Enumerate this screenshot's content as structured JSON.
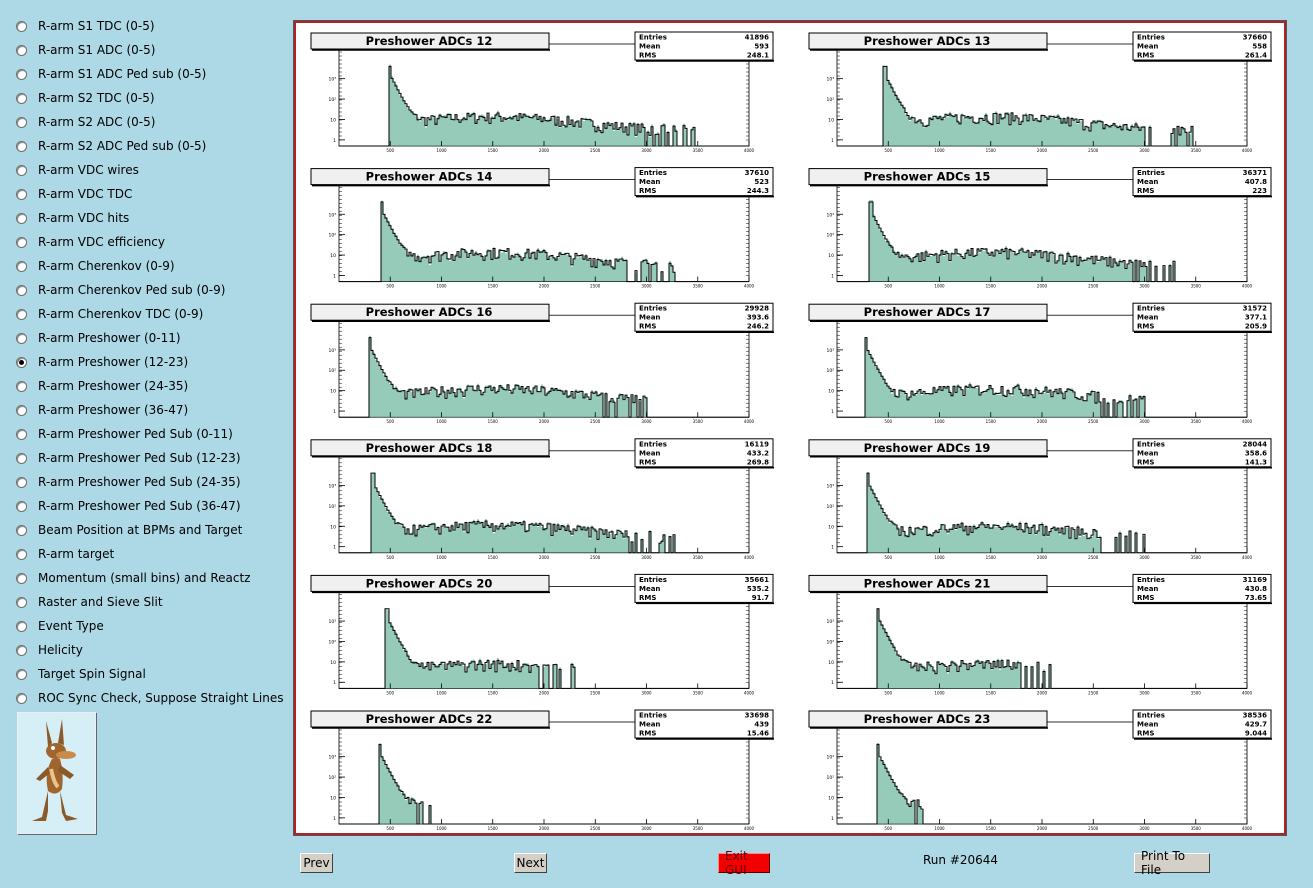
{
  "sidebar": {
    "items": [
      {
        "label": "R-arm S1 TDC (0-5)",
        "checked": false
      },
      {
        "label": "R-arm S1 ADC (0-5)",
        "checked": false
      },
      {
        "label": "R-arm S1 ADC Ped sub (0-5)",
        "checked": false
      },
      {
        "label": "R-arm S2 TDC (0-5)",
        "checked": false
      },
      {
        "label": "R-arm S2 ADC (0-5)",
        "checked": false
      },
      {
        "label": "R-arm S2 ADC Ped sub (0-5)",
        "checked": false
      },
      {
        "label": "R-arm VDC wires",
        "checked": false
      },
      {
        "label": "R-arm VDC TDC",
        "checked": false
      },
      {
        "label": "R-arm VDC hits",
        "checked": false
      },
      {
        "label": "R-arm VDC efficiency",
        "checked": false
      },
      {
        "label": "R-arm Cherenkov (0-9)",
        "checked": false
      },
      {
        "label": "R-arm Cherenkov Ped sub (0-9)",
        "checked": false
      },
      {
        "label": "R-arm Cherenkov TDC (0-9)",
        "checked": false
      },
      {
        "label": "R-arm Preshower (0-11)",
        "checked": false
      },
      {
        "label": "R-arm Preshower (12-23)",
        "checked": true
      },
      {
        "label": "R-arm Preshower (24-35)",
        "checked": false
      },
      {
        "label": "R-arm Preshower (36-47)",
        "checked": false
      },
      {
        "label": "R-arm Preshower Ped Sub (0-11)",
        "checked": false
      },
      {
        "label": "R-arm Preshower Ped Sub (12-23)",
        "checked": false
      },
      {
        "label": "R-arm Preshower Ped Sub (24-35)",
        "checked": false
      },
      {
        "label": "R-arm Preshower Ped Sub (36-47)",
        "checked": false
      },
      {
        "label": "Beam Position at BPMs and Target",
        "checked": false
      },
      {
        "label": "R-arm target",
        "checked": false
      },
      {
        "label": "Momentum (small bins) and Reactz",
        "checked": false
      },
      {
        "label": "Raster and Sieve Slit",
        "checked": false
      },
      {
        "label": "Event Type",
        "checked": false
      },
      {
        "label": "Helicity",
        "checked": false
      },
      {
        "label": "Target Spin Signal",
        "checked": false
      },
      {
        "label": "ROC Sync Check, Suppose Straight Lines",
        "checked": false
      }
    ]
  },
  "logo": {
    "icon": "coyote-mascot-icon"
  },
  "footer": {
    "prev_label": "Prev",
    "next_label": "Next",
    "exit_label": "Exit GUI",
    "run_label": "Run #20644",
    "print_label": "Print To File"
  },
  "colors": {
    "background": "#add8e6",
    "frame": "#b22222",
    "fill": "#3f9f7f",
    "exit": "#f20000"
  },
  "chart_data": {
    "type": "bar",
    "stat_labels": [
      "Entries",
      "Mean",
      "RMS"
    ],
    "x_ticks": [
      "500",
      "1000",
      "1500",
      "2000",
      "2500",
      "3000",
      "3500",
      "4000"
    ],
    "y_ticks": [
      "1",
      "10",
      "10²",
      "10³"
    ],
    "xlim": [
      0,
      4000
    ],
    "log_y": true,
    "histograms": [
      {
        "title": "Preshower ADCs 12",
        "entries": "41896",
        "mean": "593",
        "rms": "248.1",
        "peak": 500,
        "tail_end": 3500,
        "tail_level": 0.45
      },
      {
        "title": "Preshower ADCs 13",
        "entries": "37660",
        "mean": "558",
        "rms": "261.4",
        "peak": 470,
        "tail_end": 3500,
        "tail_level": 0.45
      },
      {
        "title": "Preshower ADCs 14",
        "entries": "37610",
        "mean": "523",
        "rms": "244.3",
        "peak": 420,
        "tail_end": 3300,
        "tail_level": 0.45
      },
      {
        "title": "Preshower ADCs 15",
        "entries": "36371",
        "mean": "407.8",
        "rms": "223",
        "peak": 330,
        "tail_end": 3300,
        "tail_level": 0.45
      },
      {
        "title": "Preshower ADCs 16",
        "entries": "29928",
        "mean": "393.6",
        "rms": "246.2",
        "peak": 300,
        "tail_end": 3000,
        "tail_level": 0.4
      },
      {
        "title": "Preshower ADCs 17",
        "entries": "31572",
        "mean": "377.1",
        "rms": "205.9",
        "peak": 280,
        "tail_end": 3000,
        "tail_level": 0.4
      },
      {
        "title": "Preshower ADCs 18",
        "entries": "16119",
        "mean": "433.2",
        "rms": "269.8",
        "peak": 330,
        "tail_end": 3300,
        "tail_level": 0.35
      },
      {
        "title": "Preshower ADCs 19",
        "entries": "28044",
        "mean": "358.6",
        "rms": "141.3",
        "peak": 300,
        "tail_end": 3000,
        "tail_level": 0.28
      },
      {
        "title": "Preshower ADCs 20",
        "entries": "35661",
        "mean": "535.2",
        "rms": "91.7",
        "peak": 470,
        "tail_end": 2300,
        "tail_level": 0.2
      },
      {
        "title": "Preshower ADCs 21",
        "entries": "31169",
        "mean": "430.8",
        "rms": "73.65",
        "peak": 400,
        "tail_end": 2100,
        "tail_level": 0.2
      },
      {
        "title": "Preshower ADCs 22",
        "entries": "33698",
        "mean": "439",
        "rms": "15.46",
        "peak": 400,
        "tail_end": 900,
        "tail_level": 0.15
      },
      {
        "title": "Preshower ADCs 23",
        "entries": "38536",
        "mean": "429.7",
        "rms": "9.044",
        "peak": 400,
        "tail_end": 900,
        "tail_level": 0.15
      }
    ]
  }
}
